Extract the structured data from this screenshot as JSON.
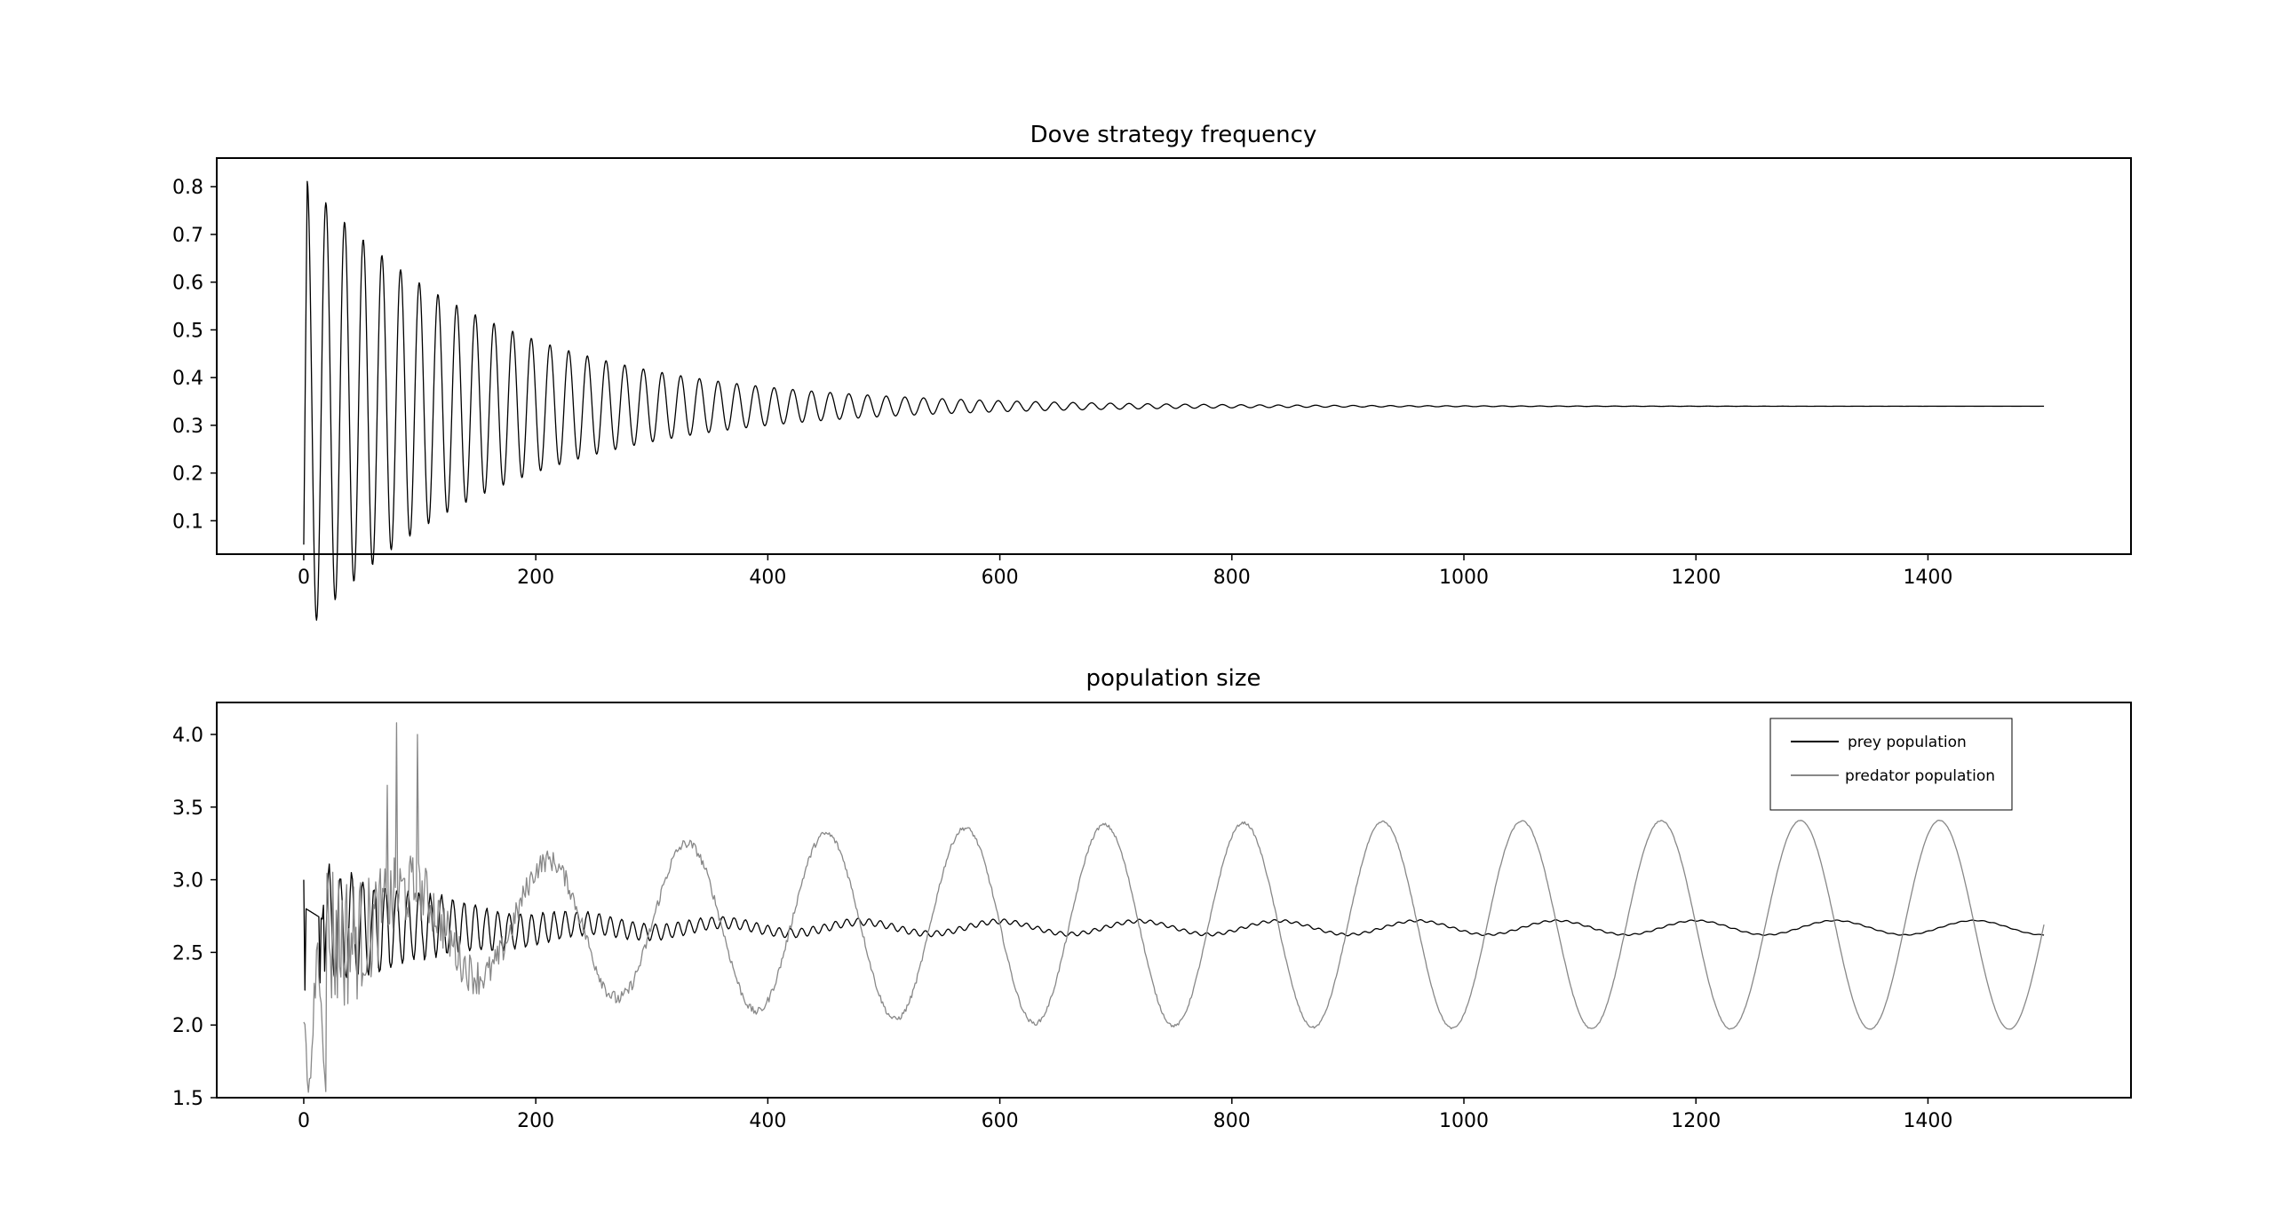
{
  "figure": {
    "background": "#ffffff",
    "line_colors": {
      "dove": "#000000",
      "prey": "#000000",
      "predator": "#888888"
    }
  },
  "chart_data": [
    {
      "type": "line",
      "title": "Dove strategy frequency",
      "xlabel": "",
      "ylabel": "",
      "xlim": [
        -75,
        1575
      ],
      "ylim": [
        0.03,
        0.86
      ],
      "xticks": [
        0,
        200,
        400,
        600,
        800,
        1000,
        1200,
        1400
      ],
      "yticks": [
        0.1,
        0.2,
        0.3,
        0.4,
        0.5,
        0.6,
        0.7,
        0.8
      ],
      "grid": false,
      "legend": null,
      "series": [
        {
          "name": "",
          "color": "#000000",
          "model": {
            "kind": "damped-sine",
            "x_start": 0,
            "x_end": 1500,
            "equilibrium": 0.34,
            "amplitude": 0.38,
            "period": 16.1,
            "decay_per_step": 0.0062,
            "start_value": 0.05,
            "first_peak": 0.82
          }
        }
      ]
    },
    {
      "type": "line",
      "title": "population size",
      "xlabel": "",
      "ylabel": "",
      "xlim": [
        -75,
        1575
      ],
      "ylim": [
        1.5,
        4.22
      ],
      "xticks": [
        0,
        200,
        400,
        600,
        800,
        1000,
        1200,
        1400
      ],
      "yticks": [
        1.5,
        2.0,
        2.5,
        3.0,
        3.5,
        4.0
      ],
      "grid": false,
      "legend": "top-right",
      "series": [
        {
          "name": "prey population",
          "color": "#000000",
          "model": {
            "kind": "noisy-converging",
            "x_start": 0,
            "x_end": 1500,
            "start_value": 3.0,
            "mean": 2.67,
            "final_amplitude": 0.05,
            "final_period": 120,
            "early_spikes": [
              3.36,
              3.42,
              3.05,
              2.98,
              2.95,
              2.88
            ]
          }
        },
        {
          "name": "predator population",
          "color": "#888888",
          "model": {
            "kind": "growing-oscillation",
            "x_start": 0,
            "x_end": 1500,
            "start_value": 2.02,
            "first_minimum": 1.62,
            "max_spike": 4.08,
            "mean": 2.67,
            "final_amplitude": 0.72,
            "period": 120,
            "peaks_x": [
              330,
              450,
              570,
              690,
              810,
              930,
              1050,
              1170,
              1290,
              1410
            ],
            "peak_values": [
              3.5,
              3.45,
              3.42,
              3.4,
              3.4,
              3.4,
              3.39,
              3.39,
              3.39,
              3.39
            ],
            "trough_values": [
              1.9,
              1.95,
              1.95,
              1.95,
              1.95,
              1.95,
              1.95,
              1.95,
              1.95,
              1.95
            ]
          }
        }
      ]
    }
  ]
}
